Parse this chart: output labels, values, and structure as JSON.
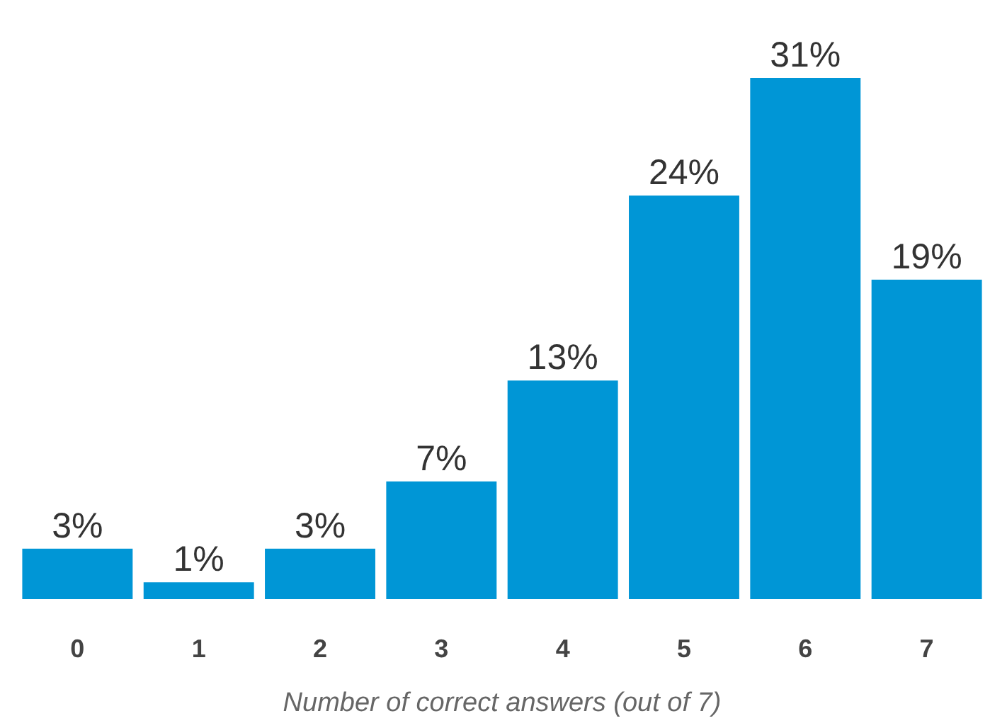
{
  "chart_data": {
    "type": "bar",
    "xlabel": "Number of correct answers (out of 7)",
    "categories": [
      "0",
      "1",
      "2",
      "3",
      "4",
      "5",
      "6",
      "7"
    ],
    "values": [
      3,
      1,
      3,
      7,
      13,
      24,
      31,
      19
    ],
    "value_labels": [
      "3%",
      "1%",
      "3%",
      "7%",
      "13%",
      "24%",
      "31%",
      "19%"
    ],
    "color": "#0096d6"
  }
}
